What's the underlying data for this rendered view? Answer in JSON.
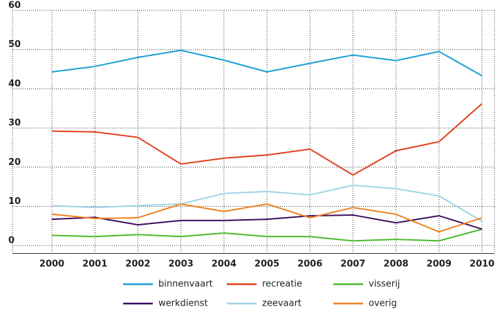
{
  "chart_data": {
    "type": "line",
    "categories": [
      "2000",
      "2001",
      "2002",
      "2003",
      "2004",
      "2005",
      "2006",
      "2007",
      "2008",
      "2009",
      "2010"
    ],
    "series": [
      {
        "name": "binnenvaart",
        "color": "#1a9ed4",
        "values": [
          44.3,
          45.7,
          48,
          49.8,
          47.3,
          44.3,
          46.5,
          48.6,
          47.2,
          49.5,
          43.3
        ]
      },
      {
        "name": "recreatie",
        "color": "#e0401c",
        "values": [
          29.2,
          29,
          27.6,
          20.8,
          22.3,
          23.1,
          24.6,
          18,
          24.2,
          26.5,
          36.2
        ]
      },
      {
        "name": "visserij",
        "color": "#4cb82c",
        "values": [
          2.6,
          2.3,
          2.8,
          2.3,
          3.2,
          2.3,
          2.3,
          1.2,
          1.6,
          1.2,
          4.2
        ]
      },
      {
        "name": "werkdienst",
        "color": "#3b0d5f",
        "values": [
          6.7,
          7.2,
          5.3,
          6.4,
          6.4,
          6.7,
          7.6,
          7.8,
          5.8,
          7.6,
          4.2
        ]
      },
      {
        "name": "zeevaart",
        "color": "#9fd3ea",
        "values": [
          10.2,
          9.7,
          10.2,
          10.6,
          13.3,
          13.8,
          12.9,
          15.4,
          14.5,
          12.7,
          6.2
        ]
      },
      {
        "name": "overig",
        "color": "#f07f1e",
        "values": [
          8,
          6.9,
          7.1,
          10.6,
          8.7,
          10.6,
          7.1,
          9.7,
          8,
          3.5,
          7.1
        ]
      }
    ],
    "ylim": [
      -2,
      60
    ],
    "yticks": [
      0,
      10,
      20,
      30,
      40,
      50,
      60
    ],
    "grid": true
  }
}
